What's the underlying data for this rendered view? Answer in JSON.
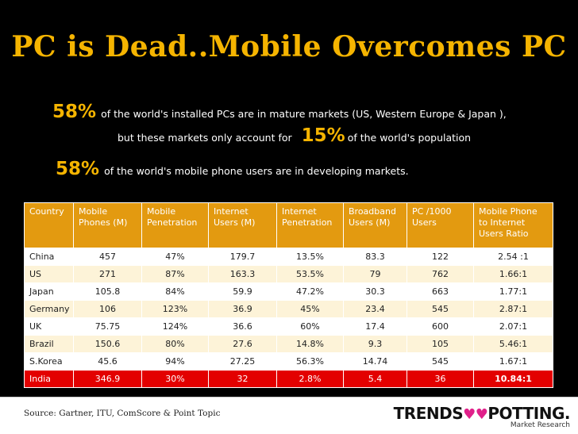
{
  "title": "PC is Dead..Mobile Overcomes PC",
  "stats": [
    {
      "big": "58%",
      "text": "of the world's installed PCs  are in mature markets (US, Western Europe & Japan ),"
    },
    {
      "text": "but these markets only account for",
      "big": "15%",
      "text2": "of the world's population"
    },
    {
      "big": "58%",
      "text": "of the world's mobile phone users are in developing markets."
    }
  ],
  "table": {
    "headers": [
      "Country",
      "Mobile Phones (M)",
      "Mobile Penetration",
      "Internet Users (M)",
      "Internet Penetration",
      "Broadband Users (M)",
      "PC /1000 Users",
      "Mobile Phone to Internet Users  Ratio"
    ],
    "rows": [
      [
        "China",
        "457",
        "47%",
        "179.7",
        "13.5%",
        "83.3",
        "122",
        "2.54 :1"
      ],
      [
        "US",
        "271",
        "87%",
        "163.3",
        "53.5%",
        "79",
        "762",
        "1.66:1"
      ],
      [
        "Japan",
        "105.8",
        "84%",
        "59.9",
        "47.2%",
        "30.3",
        "663",
        "1.77:1"
      ],
      [
        "Germany",
        "106",
        "123%",
        "36.9",
        "45%",
        "23.4",
        "545",
        "2.87:1"
      ],
      [
        "UK",
        "75.75",
        "124%",
        "36.6",
        "60%",
        "17.4",
        "600",
        "2.07:1"
      ],
      [
        "Brazil",
        "150.6",
        "80%",
        "27.6",
        "14.8%",
        "9.3",
        "105",
        "5.46:1"
      ],
      [
        "S.Korea",
        "45.6",
        "94%",
        "27.25",
        "56.3%",
        "14.74",
        "545",
        "1.67:1"
      ],
      [
        "India",
        "346.9",
        "30%",
        "32",
        "2.8%",
        "5.4",
        "36",
        "10.84:1"
      ]
    ],
    "highlight_row": 7,
    "colors": {
      "header": "#e39a10",
      "highlight": "#e30000",
      "accent": "#f5b400"
    }
  },
  "footer": {
    "source": "Source: Gartner, ITU, ComScore  & Point Topic",
    "logo_left": "TRENDS",
    "logo_heart": "♥♥",
    "logo_right": "POTTING.",
    "logo_sub": "Market Research"
  }
}
